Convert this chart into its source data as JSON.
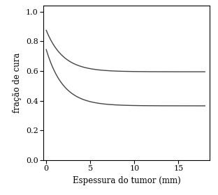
{
  "title": "",
  "xlabel": "Espessura do tumor (mm)",
  "ylabel": "fração de cura",
  "xlim": [
    -0.3,
    18.5
  ],
  "ylim": [
    0.0,
    1.04
  ],
  "xticks": [
    0,
    5,
    10,
    15
  ],
  "yticks": [
    0.0,
    0.2,
    0.4,
    0.6,
    0.8,
    1.0
  ],
  "curve1_color": "#444444",
  "curve2_color": "#444444",
  "background_color": "#ffffff",
  "curve1_start": 0.875,
  "curve1_plateau": 0.595,
  "curve1_decay": 0.52,
  "curve2_start": 0.745,
  "curve2_plateau": 0.365,
  "curve2_decay": 0.52,
  "linewidth": 1.0,
  "xlabel_fontsize": 8.5,
  "ylabel_fontsize": 8.5,
  "tick_fontsize": 8.0
}
